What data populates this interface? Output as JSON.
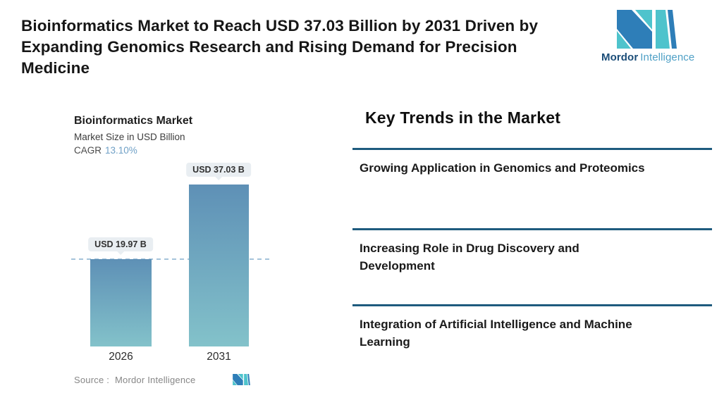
{
  "header": {
    "title_lines": [
      "Bioinformatics Market to Reach USD 37.03 Billion by 2031 Driven by",
      "Expanding Genomics Research and Rising Demand for Precision",
      "Medicine"
    ],
    "logo": {
      "brand_bold": "Mordor",
      "brand_regular": "Intelligence"
    }
  },
  "chart": {
    "title": "Bioinformatics Market",
    "subtitle": "Market Size in USD Billion",
    "cagr_label": "CAGR",
    "cagr_value": "13.10%",
    "source_label": "Source :",
    "source_value": "Mordor Intelligence",
    "bars": [
      {
        "year": "2026",
        "label": "USD 19.97 B"
      },
      {
        "year": "2031",
        "label": "USD 37.03 B"
      }
    ]
  },
  "chart_data": {
    "type": "bar",
    "title": "Bioinformatics Market",
    "subtitle": "Market Size in USD Billion",
    "cagr_percent": 13.1,
    "categories": [
      "2026",
      "2031"
    ],
    "values": [
      19.97,
      37.03
    ],
    "data_labels": [
      "USD 19.97 B",
      "USD 37.03 B"
    ],
    "unit": "USD Billion",
    "reference_line": 19.97,
    "grid": false,
    "legend": false,
    "source": "Source : Mordor Intelligence"
  },
  "trends": {
    "heading": "Key Trends in the Market",
    "items": [
      {
        "lines": [
          "Growing Application in Genomics and Proteomics"
        ]
      },
      {
        "lines": [
          "Increasing Role in Drug Discovery and",
          "Development"
        ]
      },
      {
        "lines": [
          "Integration of Artificial Intelligence and Machine",
          "Learning"
        ]
      }
    ]
  },
  "colors": {
    "logo_teal": "#4EC3CC",
    "logo_blue": "#2E7EB8",
    "brand_bold_text": "#1B4D78",
    "brand_regular_text": "#4FA0C6",
    "bar_gradient_top": "#5E90B6",
    "bar_gradient_bottom": "#83C2CA",
    "dashed_line": "#A5C3DB",
    "cagr_value": "#6FA0C6",
    "divider": "#1E5B7E",
    "tooltip_bg": "#E9EEF2"
  }
}
